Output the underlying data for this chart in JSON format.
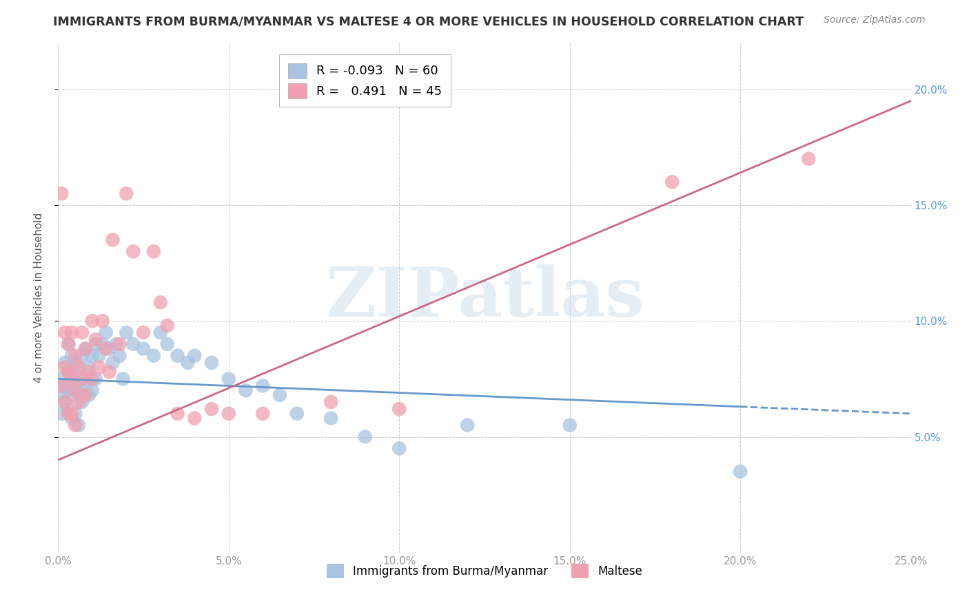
{
  "title": "IMMIGRANTS FROM BURMA/MYANMAR VS MALTESE 4 OR MORE VEHICLES IN HOUSEHOLD CORRELATION CHART",
  "source": "Source: ZipAtlas.com",
  "ylabel": "4 or more Vehicles in Household",
  "xlabel_blue": "Immigrants from Burma/Myanmar",
  "xlabel_pink": "Maltese",
  "xmin": 0.0,
  "xmax": 0.25,
  "ymin": 0.0,
  "ymax": 0.22,
  "yticks": [
    0.05,
    0.1,
    0.15,
    0.2
  ],
  "ytick_labels": [
    "5.0%",
    "10.0%",
    "15.0%",
    "20.0%"
  ],
  "xticks": [
    0.0,
    0.05,
    0.1,
    0.15,
    0.2,
    0.25
  ],
  "xtick_labels": [
    "0.0%",
    "5.0%",
    "10.0%",
    "15.0%",
    "20.0%",
    "25.0%"
  ],
  "legend_blue_R": "-0.093",
  "legend_blue_N": "60",
  "legend_pink_R": "0.491",
  "legend_pink_N": "45",
  "blue_color": "#a8c4e0",
  "pink_color": "#f0a0b0",
  "line_blue_color": "#6699cc",
  "line_pink_color": "#cc6688",
  "watermark": "ZIPatlas",
  "blue_line_x": [
    0.0,
    0.25
  ],
  "blue_line_y": [
    0.075,
    0.06
  ],
  "pink_line_x": [
    0.0,
    0.25
  ],
  "pink_line_y": [
    0.04,
    0.195
  ],
  "blue_x": [
    0.001,
    0.001,
    0.001,
    0.002,
    0.002,
    0.002,
    0.003,
    0.003,
    0.003,
    0.003,
    0.004,
    0.004,
    0.004,
    0.004,
    0.005,
    0.005,
    0.005,
    0.006,
    0.006,
    0.006,
    0.007,
    0.007,
    0.007,
    0.008,
    0.008,
    0.009,
    0.009,
    0.01,
    0.01,
    0.011,
    0.011,
    0.012,
    0.013,
    0.014,
    0.015,
    0.016,
    0.017,
    0.018,
    0.019,
    0.02,
    0.022,
    0.025,
    0.028,
    0.03,
    0.032,
    0.035,
    0.038,
    0.04,
    0.045,
    0.05,
    0.055,
    0.06,
    0.065,
    0.07,
    0.08,
    0.09,
    0.1,
    0.12,
    0.15,
    0.2
  ],
  "blue_y": [
    0.075,
    0.068,
    0.06,
    0.082,
    0.072,
    0.065,
    0.09,
    0.078,
    0.07,
    0.062,
    0.085,
    0.075,
    0.068,
    0.058,
    0.082,
    0.072,
    0.06,
    0.08,
    0.07,
    0.055,
    0.085,
    0.075,
    0.065,
    0.088,
    0.072,
    0.08,
    0.068,
    0.085,
    0.07,
    0.09,
    0.075,
    0.085,
    0.09,
    0.095,
    0.088,
    0.082,
    0.09,
    0.085,
    0.075,
    0.095,
    0.09,
    0.088,
    0.085,
    0.095,
    0.09,
    0.085,
    0.082,
    0.085,
    0.082,
    0.075,
    0.07,
    0.072,
    0.068,
    0.06,
    0.058,
    0.05,
    0.045,
    0.055,
    0.055,
    0.035
  ],
  "pink_x": [
    0.001,
    0.001,
    0.002,
    0.002,
    0.002,
    0.003,
    0.003,
    0.003,
    0.004,
    0.004,
    0.004,
    0.005,
    0.005,
    0.005,
    0.006,
    0.006,
    0.007,
    0.007,
    0.008,
    0.008,
    0.009,
    0.01,
    0.01,
    0.011,
    0.012,
    0.013,
    0.014,
    0.015,
    0.016,
    0.018,
    0.02,
    0.022,
    0.025,
    0.028,
    0.03,
    0.032,
    0.035,
    0.04,
    0.045,
    0.05,
    0.06,
    0.08,
    0.1,
    0.18,
    0.22
  ],
  "pink_y": [
    0.155,
    0.072,
    0.095,
    0.08,
    0.065,
    0.09,
    0.078,
    0.06,
    0.095,
    0.075,
    0.06,
    0.085,
    0.07,
    0.055,
    0.08,
    0.065,
    0.095,
    0.075,
    0.088,
    0.068,
    0.078,
    0.1,
    0.075,
    0.092,
    0.08,
    0.1,
    0.088,
    0.078,
    0.135,
    0.09,
    0.155,
    0.13,
    0.095,
    0.13,
    0.108,
    0.098,
    0.06,
    0.058,
    0.062,
    0.06,
    0.06,
    0.065,
    0.062,
    0.16,
    0.17
  ]
}
